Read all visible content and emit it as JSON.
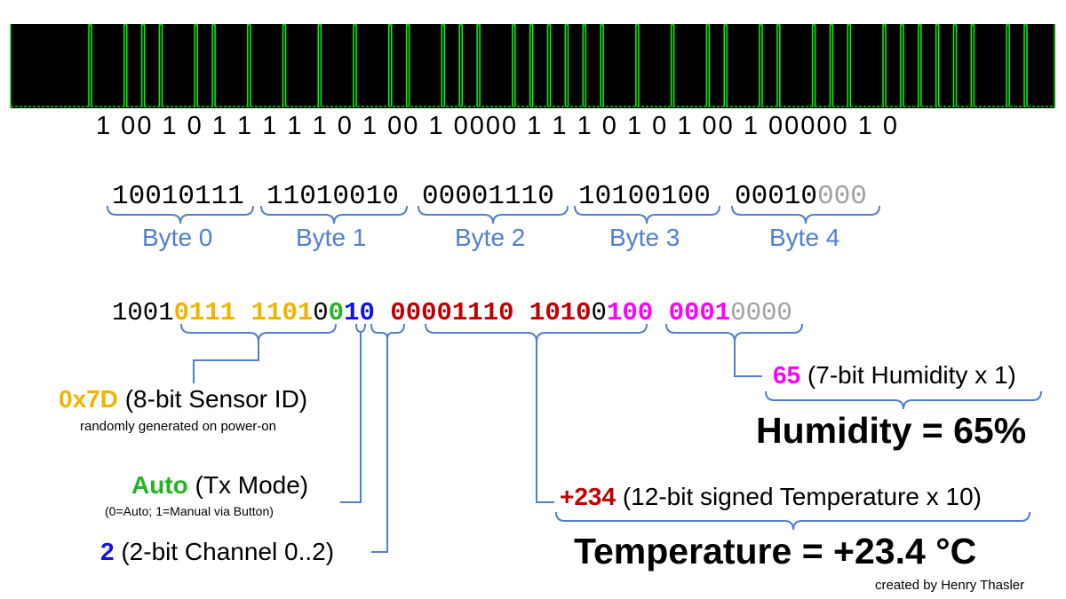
{
  "colors": {
    "signal_bg": "#000000",
    "signal_line": "#00ff00",
    "brace": "#4f7fd0",
    "sensor_id": "#f0b400",
    "tx_mode": "#22b522",
    "channel": "#1010ee",
    "temperature": "#c00000",
    "humidity": "#ff00ff",
    "padding": "#a0a0a0"
  },
  "signal": {
    "bits": [
      1,
      0,
      0,
      1,
      0,
      1,
      1,
      1,
      1,
      1,
      0,
      1,
      0,
      0,
      1,
      0,
      0,
      0,
      0,
      0,
      1,
      1,
      1,
      0,
      1,
      0,
      1,
      0,
      0,
      1,
      0,
      0,
      0,
      0,
      0,
      1,
      0
    ]
  },
  "bitstream_text": "1 00 1 0 1  1  1  1   1 0 1 00 1 0000 1  1  1 0  1 0 1 00 1 00000 1 0",
  "bytes": [
    {
      "bits": "10010111",
      "label": "Byte 0"
    },
    {
      "bits": "11010010",
      "label": "Byte 1"
    },
    {
      "bits": "00001110",
      "label": "Byte 2"
    },
    {
      "bits": "10100100",
      "label": "Byte 3"
    },
    {
      "bits_main": "00010",
      "bits_pad": "000",
      "label": "Byte 4"
    }
  ],
  "decoded_segments": [
    {
      "text": "1001",
      "color": "#000000",
      "bold": false
    },
    {
      "text": "0111 1101",
      "color": "#f0b400",
      "bold": true
    },
    {
      "text": "0",
      "color": "#000000",
      "bold": false
    },
    {
      "text": "0",
      "color": "#22b522",
      "bold": true
    },
    {
      "text": "10",
      "color": "#1010ee",
      "bold": true
    },
    {
      "text": " ",
      "color": "#000000",
      "bold": false
    },
    {
      "text": "00001110 1010",
      "color": "#c00000",
      "bold": true
    },
    {
      "text": "0",
      "color": "#000000",
      "bold": false
    },
    {
      "text": "100 0001",
      "color": "#ff00ff",
      "bold": true
    },
    {
      "text": "0000",
      "color": "#a0a0a0",
      "bold": false
    }
  ],
  "sensor_id": {
    "value": "0x7D",
    "desc": " (8-bit Sensor ID)",
    "note": "randomly generated on power-on"
  },
  "tx_mode": {
    "value": "Auto",
    "desc": " (Tx Mode)",
    "note": "(0=Auto; 1=Manual via Button)"
  },
  "channel": {
    "value": "2",
    "desc": " (2-bit Channel 0..2)"
  },
  "temperature": {
    "value": "+234",
    "desc": " (12-bit signed Temperature x 10)",
    "result": "Temperature = +23.4 °C"
  },
  "humidity": {
    "value": "65",
    "desc": " (7-bit Humidity x 1)",
    "result": "Humidity = 65%"
  },
  "credit": "created by Henry Thasler"
}
